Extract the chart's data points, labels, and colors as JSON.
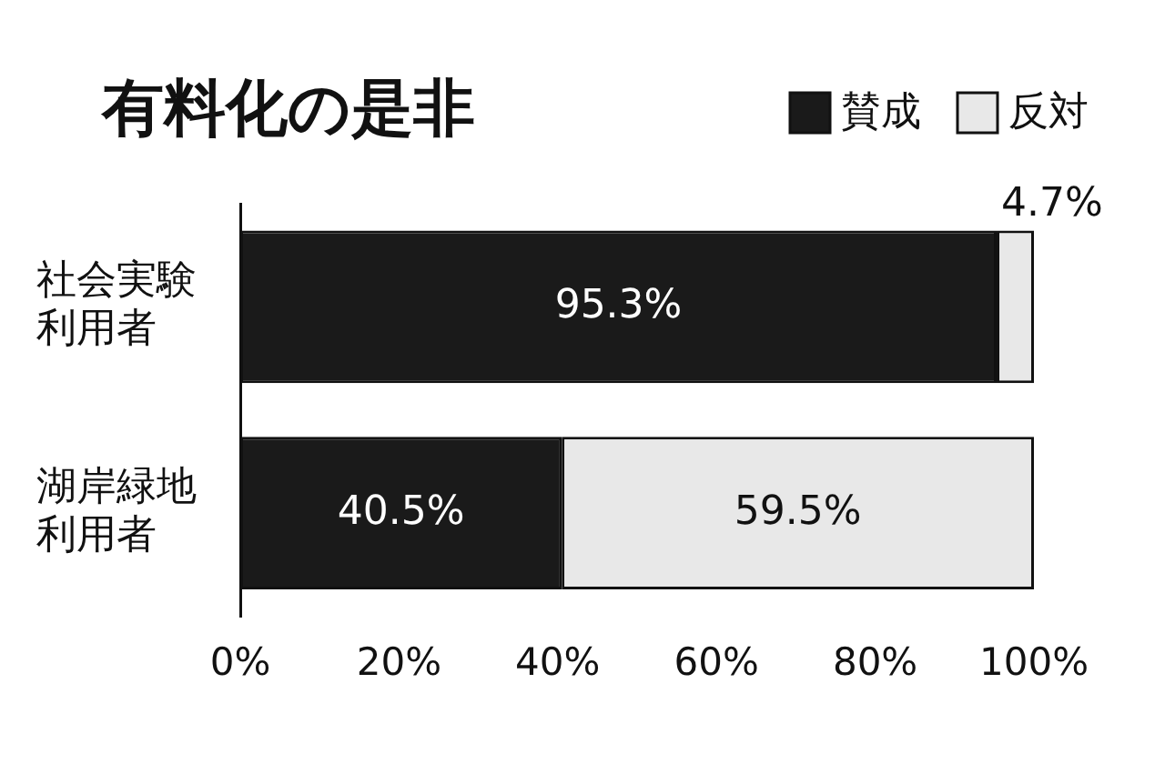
{
  "chart_data": {
    "type": "bar",
    "orientation": "horizontal",
    "stacked": true,
    "title": "有料化の是非",
    "categories": [
      "社会実験利用者",
      "湖岸緑地利用者"
    ],
    "series": [
      {
        "name": "賛成",
        "color": "#1a1a1a",
        "values": [
          95.3,
          40.5
        ]
      },
      {
        "name": "反対",
        "color": "#e8e8e8",
        "values": [
          4.7,
          59.5
        ]
      }
    ],
    "xlim": [
      0,
      100
    ],
    "xticks": [
      {
        "value": 0,
        "label": "0%"
      },
      {
        "value": 20,
        "label": "20%"
      },
      {
        "value": 40,
        "label": "40%"
      },
      {
        "value": 60,
        "label": "60%"
      },
      {
        "value": 80,
        "label": "80%"
      },
      {
        "value": 100,
        "label": "100%"
      }
    ],
    "value_labels": [
      [
        "95.3%",
        "40.5%"
      ],
      [
        "4.7%",
        "59.5%"
      ]
    ],
    "legend": "top right",
    "grid": false
  }
}
